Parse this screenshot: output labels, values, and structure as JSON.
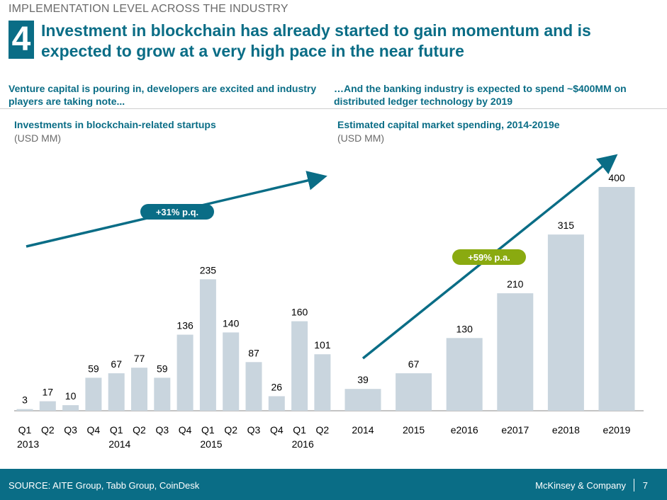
{
  "slide": {
    "top_label": "IMPLEMENTATION LEVEL ACROSS THE INDUSTRY",
    "section_number": "4",
    "headline": "Investment in blockchain has already started to gain momentum and is expected to grow at a very high pace in the near future",
    "left_subtitle": "Venture capital is pouring in, developers are excited and industry players are taking note...",
    "right_subtitle": "…And the banking industry is expected to spend ~$400MM on distributed ledger technology by 2019"
  },
  "chart_data": [
    {
      "type": "bar",
      "title": "Investments in blockchain-related startups",
      "unit": "(USD MM)",
      "categories": [
        "Q1",
        "Q2",
        "Q3",
        "Q4",
        "Q1",
        "Q2",
        "Q3",
        "Q4",
        "Q1",
        "Q2",
        "Q3",
        "Q4",
        "Q1",
        "Q2"
      ],
      "year_labels": [
        "2013",
        "2014",
        "2015",
        "2016"
      ],
      "values": [
        3,
        17,
        10,
        59,
        67,
        77,
        59,
        136,
        235,
        140,
        87,
        26,
        160,
        101
      ],
      "trend_label": "+31% p.q.",
      "bar_color": "#c9d5de",
      "trend_color": "#0a6d86",
      "badge_color": "#0a6d86"
    },
    {
      "type": "bar",
      "title": "Estimated capital market spending, 2014-2019e",
      "unit": "(USD MM)",
      "categories": [
        "2014",
        "2015",
        "e2016",
        "e2017",
        "e2018",
        "e2019"
      ],
      "values": [
        39,
        67,
        130,
        210,
        315,
        400
      ],
      "trend_label": "+59% p.a.",
      "bar_color": "#c9d5de",
      "trend_color": "#0a6d86",
      "badge_color": "#8aaa10"
    }
  ],
  "footer": {
    "source": "SOURCE: AITE Group, Tabb Group, CoinDesk",
    "brand": "McKinsey & Company",
    "page_number": "7"
  }
}
